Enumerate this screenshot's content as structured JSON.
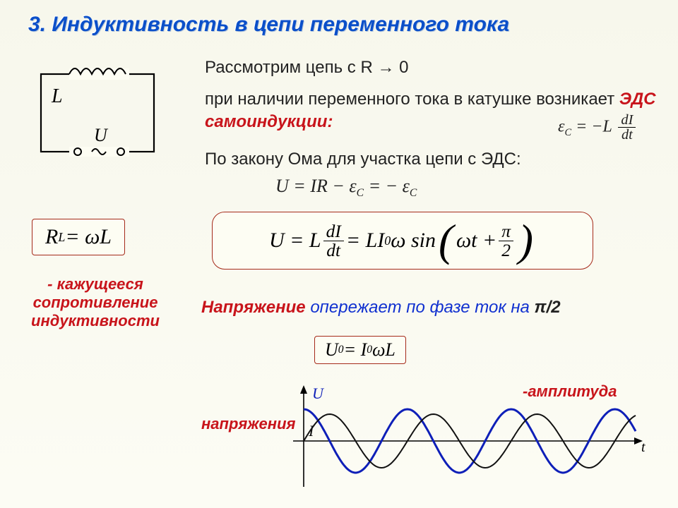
{
  "title": "3. Индуктивность в цепи переменного тока",
  "circuit": {
    "L": "L",
    "U": "U"
  },
  "p1": "Рассмотрим цепь с R → 0",
  "p2a": "при наличии переменного тока в катушке возникает ",
  "p2b": "ЭДС самоиндукции:",
  "emf_formula_prefix": "ε",
  "emf_formula_sub": "C",
  "emf_formula_mid": " = −L ",
  "emf_dI": "dI",
  "emf_dt": "dt",
  "p3": "По закону Ома для участка цепи с ЭДС:",
  "ohm_line": "U = IR − ε",
  "ohm_sub": "C",
  "ohm_tail": " = − ε",
  "ohm_sub2": "C",
  "RL_formula": "R",
  "RL_sub": "L",
  "RL_tail": " = ωL",
  "RL_caption": "- кажущееся сопротивление индуктивности",
  "main_U": "U = L ",
  "main_dI": "dI",
  "main_dt": "dt",
  "main_mid": " = LI",
  "main_sub0": "0",
  "main_omega": "ω sin",
  "main_arg_omegat": "ωt + ",
  "main_pi": "π",
  "main_2": "2",
  "phase_a": "Напряжение",
  "phase_b": " опережает по фазе ток на ",
  "phase_c": "π/2",
  "amp_box_U": "U",
  "amp_box_eq": " = I",
  "amp_box_0a": "0",
  "amp_box_0b": "0",
  "amp_box_tail": " ωL",
  "amp_label": "-амплитуда",
  "volt_label": "напряжения",
  "graph": {
    "Ulabel": "U",
    "Ilabel": "I",
    "t_label": "t",
    "line_U_color": "#0e1fb8",
    "line_I_color": "#111111",
    "axis_color": "#000",
    "U_amp": 45,
    "I_amp": 38,
    "periods": 3.2,
    "phase_U_leads": 1.5708
  },
  "colors": {
    "title": "#0b4fc9",
    "box_border": "#a52a1a",
    "red": "#c8141b"
  }
}
